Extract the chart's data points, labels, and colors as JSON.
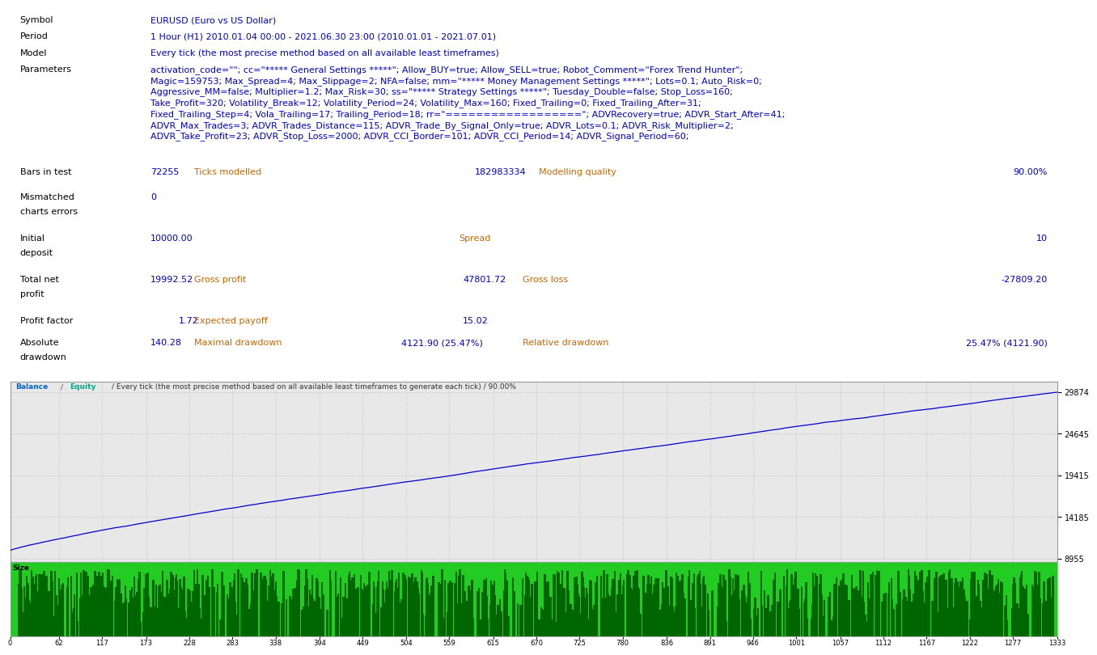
{
  "bg_color": "#ffffff",
  "label_color": "#000000",
  "value_color": "#0000cc",
  "orange_color": "#cc6600",
  "symbol_label": "Symbol",
  "symbol_value": "EURUSD (Euro vs US Dollar)",
  "period_label": "Period",
  "period_value": "1 Hour (H1) 2010.01.04 00:00 - 2021.06.30 23:00 (2010.01.01 - 2021.07.01)",
  "model_label": "Model",
  "model_value": "Every tick (the most precise method based on all available least timeframes)",
  "params_label": "Parameters",
  "params_lines": [
    "activation_code=\"\"; cc=\"***** General Settings *****\"; Allow_BUY=true; Allow_SELL=true; Robot_Comment=\"Forex Trend Hunter\";",
    "Magic=159753; Max_Spread=4; Max_Slippage=2; NFA=false; mm=\"***** Money Management Settings *****\"; Lots=0.1; Auto_Risk=0;",
    "Aggressive_MM=false; Multiplier=1.2; Max_Risk=30; ss=\"***** Strategy Settings *****\"; Tuesday_Double=false; Stop_Loss=160;",
    "Take_Profit=320; Volatility_Break=12; Volatility_Period=24; Volatility_Max=160; Fixed_Trailing=0; Fixed_Trailing_After=31;",
    "Fixed_Trailing_Step=4; Vola_Trailing=17; Trailing_Period=18; rr=\"==================\"; ADVRecovery=true; ADVR_Start_After=41;",
    "ADVR_Max_Trades=3; ADVR_Trades_Distance=115; ADVR_Trade_By_Signal_Only=true; ADVR_Lots=0.1; ADVR_Risk_Multiplier=2;",
    "ADVR_Take_Profit=23; ADVR_Stop_Loss=2000; ADVR_CCI_Border=101; ADVR_CCI_Period=14; ADVR_Signal_Period=60;"
  ],
  "chart_yticks": [
    8955,
    14185,
    19415,
    24645,
    29874
  ],
  "chart_xticks": [
    0,
    62,
    117,
    173,
    228,
    283,
    338,
    394,
    449,
    504,
    559,
    615,
    670,
    725,
    780,
    836,
    891,
    946,
    1001,
    1057,
    1112,
    1167,
    1222,
    1277,
    1333
  ],
  "balance_color": "#0000cc",
  "equity_color": "#00aaaa",
  "chart_bg": "#e8e8e8",
  "grid_color": "#bbbbbb",
  "size_green": "#22cc22",
  "size_dark": "#006600"
}
